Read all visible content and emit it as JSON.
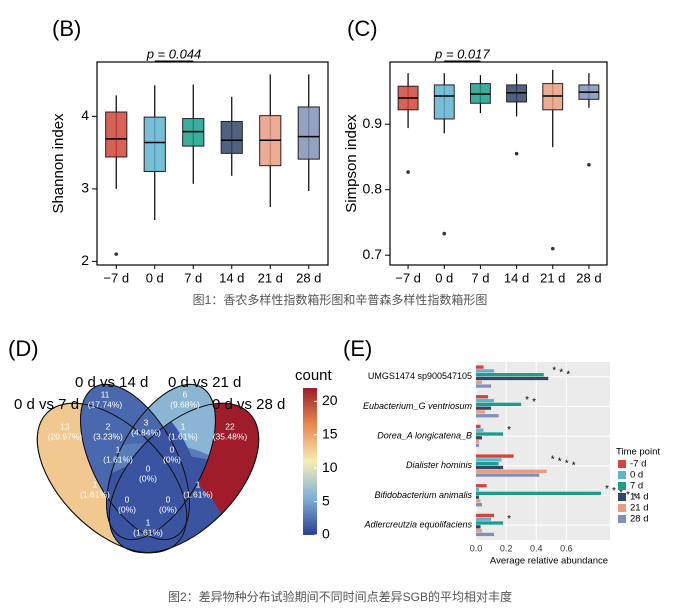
{
  "panel_labels": [
    "(B)",
    "(C)",
    "(D)",
    "(E)"
  ],
  "captions": [
    "图1：香农多样性指数箱形图和辛普森多样性指数箱形图",
    "图2：差异物种分布试验期间不同时间点差异SGB的平均相对丰度"
  ],
  "chart_data": [
    {
      "type": "box",
      "y_label": "Shannon index",
      "categories": [
        "−7 d",
        "0 d",
        "7 d",
        "14 d",
        "21 d",
        "28 d"
      ],
      "values": [
        [
          3.0,
          3.44,
          3.69,
          4.06,
          4.29
        ],
        [
          2.57,
          3.24,
          3.64,
          3.99,
          4.43
        ],
        [
          3.07,
          3.59,
          3.79,
          3.97,
          4.44
        ],
        [
          3.18,
          3.49,
          3.67,
          3.93,
          4.27
        ],
        [
          2.75,
          3.32,
          3.67,
          4.01,
          4.58
        ],
        [
          2.97,
          3.41,
          3.72,
          4.13,
          4.58
        ]
      ],
      "outliers": [
        [
          2.1
        ],
        [],
        [],
        [],
        [],
        []
      ],
      "colors": [
        "#d1453b",
        "#5fb3d0",
        "#1a9e8a",
        "#33476b",
        "#e89c82",
        "#8090b8"
      ],
      "ylim": [
        1.95,
        4.75
      ],
      "yticks": [
        2,
        3,
        4
      ],
      "annotation": "p = 0.044"
    },
    {
      "type": "box",
      "y_label": "Simpson index",
      "categories": [
        "−7 d",
        "0 d",
        "7 d",
        "14 d",
        "21 d",
        "28 d"
      ],
      "values": [
        [
          0.894,
          0.922,
          0.94,
          0.958,
          0.978
        ],
        [
          0.886,
          0.908,
          0.943,
          0.96,
          0.978
        ],
        [
          0.917,
          0.932,
          0.946,
          0.962,
          0.975
        ],
        [
          0.912,
          0.934,
          0.948,
          0.96,
          0.977
        ],
        [
          0.865,
          0.922,
          0.943,
          0.962,
          0.983
        ],
        [
          0.925,
          0.938,
          0.949,
          0.96,
          0.978
        ]
      ],
      "outliers": [
        [
          0.827
        ],
        [
          0.733
        ],
        [],
        [
          0.855
        ],
        [
          0.71
        ],
        [
          0.838
        ]
      ],
      "colors": [
        "#d1453b",
        "#5fb3d0",
        "#1a9e8a",
        "#33476b",
        "#e89c82",
        "#8090b8"
      ],
      "ylim": [
        0.685,
        0.995
      ],
      "yticks": [
        0.7,
        0.8,
        0.9
      ],
      "annotation": "p = 0.017"
    },
    {
      "type": "venn",
      "sets": [
        "0 d vs 7 d",
        "0 d vs 14 d",
        "0 d vs 21 d",
        "0 d vs 28 d"
      ],
      "regions": [
        {
          "value": 13,
          "label": "(20.97%)"
        },
        {
          "value": 11,
          "label": "(17.74%)"
        },
        {
          "value": 6,
          "label": "(9.68%)"
        },
        {
          "value": 22,
          "label": "(35.48%)"
        },
        {
          "value": 2,
          "label": "(3.23%)"
        },
        {
          "value": 3,
          "label": "(4.84%)"
        },
        {
          "value": 1,
          "label": "(1.61%)"
        },
        {
          "value": 1,
          "label": "(1.61%)"
        },
        {
          "value": 0,
          "label": "(0%)"
        },
        {
          "value": 1,
          "label": "(1.61%)"
        },
        {
          "value": 0,
          "label": "(0%)"
        },
        {
          "value": 1,
          "label": "(1.61%)"
        },
        {
          "value": 0,
          "label": "(0%)"
        },
        {
          "value": 0,
          "label": "(0%)"
        },
        {
          "value": 1,
          "label": "(1.61%)"
        }
      ],
      "colorbar_title": "count",
      "clim": [
        0,
        22
      ],
      "cticks": [
        0,
        5,
        10,
        15,
        20
      ],
      "colorscale": [
        "#2b3f97",
        "#7fb0d6",
        "#f6ecb4",
        "#e8894f",
        "#a01c2a"
      ]
    },
    {
      "type": "hbar",
      "categories": [
        "UMGS1474 sp900547105",
        "Eubacterium_G ventriosum",
        "Dorea_A longicatena_B",
        "Dialister hominis",
        "Bifidobacterium animalis",
        "Adlercreutzia equolifaciens"
      ],
      "series": [
        {
          "name": "-7 d",
          "color": "#d1453b",
          "values": [
            0.05,
            0.08,
            0.03,
            0.25,
            0.07,
            0.12
          ]
        },
        {
          "name": "0 d",
          "color": "#5fb3d0",
          "values": [
            0.12,
            0.12,
            0.05,
            0.17,
            0.02,
            0.1
          ]
        },
        {
          "name": "7 d",
          "color": "#1a9e8a",
          "values": [
            0.45,
            0.3,
            0.18,
            0.15,
            0.83,
            0.18
          ]
        },
        {
          "name": "14 d",
          "color": "#33476b",
          "values": [
            0.48,
            0.1,
            0.04,
            0.18,
            0.02,
            0.03
          ]
        },
        {
          "name": "21 d",
          "color": "#e89c82",
          "values": [
            0.04,
            0.06,
            0.02,
            0.47,
            0.03,
            0.04
          ]
        },
        {
          "name": "28 d",
          "color": "#8090b8",
          "values": [
            0.1,
            0.15,
            0.02,
            0.42,
            0.04,
            0.12
          ]
        }
      ],
      "significance": [
        [
          "*",
          "*",
          "*"
        ],
        [
          "*",
          "*"
        ],
        [
          "*"
        ],
        [
          "*",
          "*",
          "*",
          "*"
        ],
        [
          "*",
          "*",
          "*",
          "*",
          "*"
        ],
        [
          "*"
        ]
      ],
      "xlim": [
        0,
        0.89
      ],
      "xticks": [
        {
          "value": 0,
          "label": "0.0"
        },
        {
          "value": 0.2,
          "label": "0.2"
        },
        {
          "value": 0.4,
          "label": "0.4"
        },
        {
          "value": 0.6,
          "label": "0.6"
        }
      ],
      "x_label": "Average relative abundance",
      "legend_title": "Time point"
    }
  ]
}
